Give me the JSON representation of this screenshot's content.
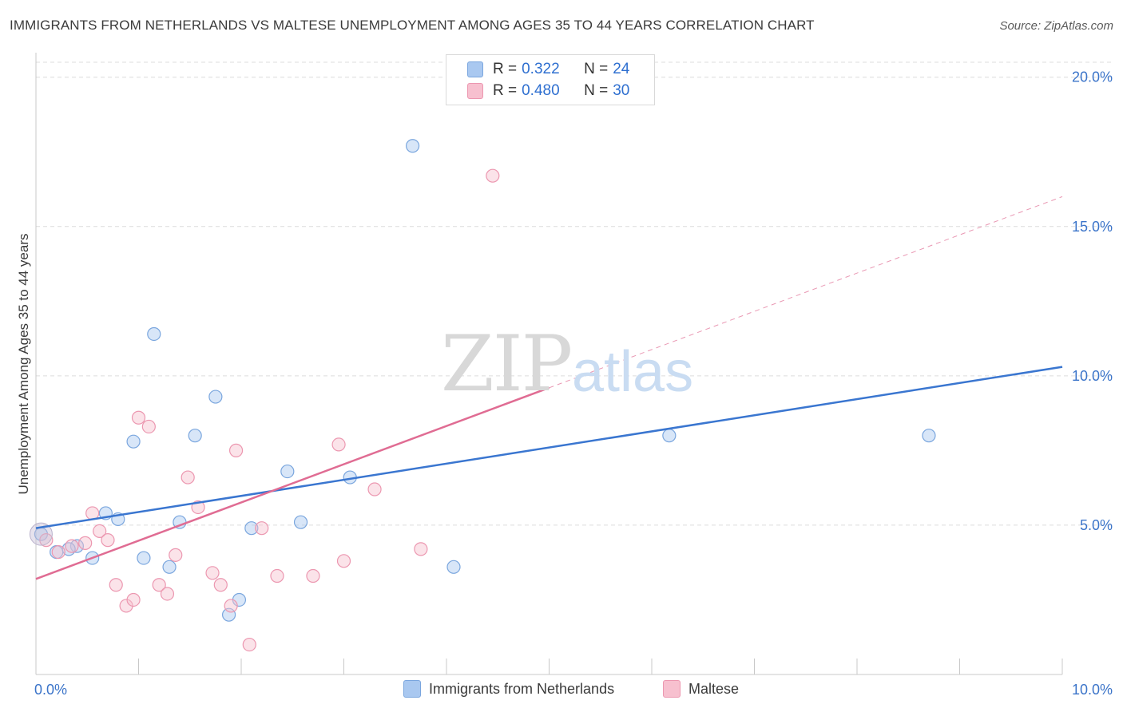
{
  "title": "IMMIGRANTS FROM NETHERLANDS VS MALTESE UNEMPLOYMENT AMONG AGES 35 TO 44 YEARS CORRELATION CHART",
  "source": "Source: ZipAtlas.com",
  "watermark": {
    "zip": "ZIP",
    "atlas": "atlas"
  },
  "legend": {
    "rows": [
      {
        "r_label": "R =",
        "r_value": "0.322",
        "n_label": "N =",
        "n_value": "24",
        "color": "#a9c8f0",
        "border": "#7aa6de"
      },
      {
        "r_label": "R =",
        "r_value": "0.480",
        "n_label": "N =",
        "n_value": "30",
        "color": "#f7c0cf",
        "border": "#ec97b0"
      }
    ]
  },
  "bottom_legend": [
    {
      "label": "Immigrants from Netherlands",
      "color": "#a9c8f0",
      "border": "#7aa6de"
    },
    {
      "label": "Maltese",
      "color": "#f7c0cf",
      "border": "#ec97b0"
    }
  ],
  "colors": {
    "blue_line": "#3a76d0",
    "pink_line": "#e06c93",
    "blue_point_fill": "rgba(169,200,240,0.45)",
    "blue_point_stroke": "#7aa6de",
    "pink_point_fill": "rgba(247,192,207,0.45)",
    "pink_point_stroke": "#ec97b0",
    "tick_label": "#3b74c9",
    "grid": "#dcdcdc"
  },
  "chart_data": {
    "type": "scatter",
    "title": "IMMIGRANTS FROM NETHERLANDS VS MALTESE UNEMPLOYMENT AMONG AGES 35 TO 44 YEARS CORRELATION CHART",
    "xlabel": "",
    "ylabel": "Unemployment Among Ages 35 to 44 years",
    "xlim": [
      0,
      10
    ],
    "ylim": [
      0,
      20.5
    ],
    "x_tick_labels": [
      "0.0%",
      "10.0%"
    ],
    "y_ticks": [
      5,
      10,
      15,
      20
    ],
    "y_tick_labels": [
      "5.0%",
      "10.0%",
      "15.0%",
      "20.0%"
    ],
    "grid": true,
    "series": [
      {
        "name": "Immigrants from Netherlands",
        "points": [
          [
            0.05,
            4.7
          ],
          [
            0.2,
            4.1
          ],
          [
            0.4,
            4.3
          ],
          [
            0.55,
            3.9
          ],
          [
            0.68,
            5.4
          ],
          [
            0.8,
            5.2
          ],
          [
            0.95,
            7.8
          ],
          [
            1.05,
            3.9
          ],
          [
            1.15,
            11.4
          ],
          [
            1.3,
            3.6
          ],
          [
            1.4,
            5.1
          ],
          [
            1.55,
            8.0
          ],
          [
            1.75,
            9.3
          ],
          [
            1.88,
            2.0
          ],
          [
            1.98,
            2.5
          ],
          [
            2.1,
            4.9
          ],
          [
            2.45,
            6.8
          ],
          [
            2.58,
            5.1
          ],
          [
            3.06,
            6.6
          ],
          [
            3.67,
            17.7
          ],
          [
            4.07,
            3.6
          ],
          [
            6.17,
            8.0
          ],
          [
            8.7,
            8.0
          ],
          [
            0.32,
            4.2
          ]
        ],
        "trend": {
          "x": [
            0,
            10
          ],
          "y": [
            4.9,
            10.3
          ]
        }
      },
      {
        "name": "Maltese",
        "points": [
          [
            0.1,
            4.5
          ],
          [
            0.22,
            4.1
          ],
          [
            0.35,
            4.3
          ],
          [
            0.48,
            4.4
          ],
          [
            0.55,
            5.4
          ],
          [
            0.62,
            4.8
          ],
          [
            0.7,
            4.5
          ],
          [
            0.78,
            3.0
          ],
          [
            0.88,
            2.3
          ],
          [
            0.95,
            2.5
          ],
          [
            1.0,
            8.6
          ],
          [
            1.1,
            8.3
          ],
          [
            1.2,
            3.0
          ],
          [
            1.28,
            2.7
          ],
          [
            1.36,
            4.0
          ],
          [
            1.48,
            6.6
          ],
          [
            1.58,
            5.6
          ],
          [
            1.72,
            3.4
          ],
          [
            1.8,
            3.0
          ],
          [
            1.9,
            2.3
          ],
          [
            1.95,
            7.5
          ],
          [
            2.08,
            1.0
          ],
          [
            2.2,
            4.9
          ],
          [
            2.35,
            3.3
          ],
          [
            2.7,
            3.3
          ],
          [
            2.95,
            7.7
          ],
          [
            3.0,
            3.8
          ],
          [
            3.3,
            6.2
          ],
          [
            3.75,
            4.2
          ],
          [
            4.45,
            16.7
          ]
        ],
        "trend": {
          "x": [
            0,
            5
          ],
          "y": [
            3.2,
            9.6
          ],
          "dashed_extension": {
            "x": [
              5,
              10
            ],
            "y": [
              9.6,
              16.0
            ]
          }
        }
      }
    ]
  }
}
